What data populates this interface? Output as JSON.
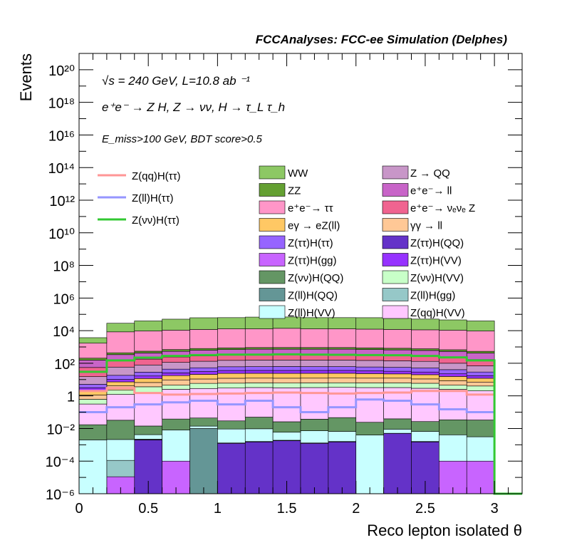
{
  "header": {
    "title": "FCCAnalyses: FCC-ee Simulation (Delphes)"
  },
  "annotations": {
    "line1": "√s = 240 GeV, L=10.8 ab ⁻¹",
    "line2": "e⁺e⁻ → Z H, Z → νν, H → τ_L τ_h",
    "line3": "E_miss>100 GeV, BDT score>0.5"
  },
  "colors": {
    "WW": "#8dc864",
    "ZZ": "#64a032",
    "ee_tautau": "#ff96c8",
    "ee_ll": "#c864c8",
    "ee_nunuZ": "#f06490",
    "egamma_eZ": "#ffc864",
    "gammagamma_ll": "#ffc896",
    "Z_QQ": "#c896c8",
    "ZtautauHtautau": "#9664ff",
    "ZtautauHQQ": "#6432c8",
    "ZtautauHgg": "#c864ff",
    "ZtautauHVV": "#9632ff",
    "ZnunuHQQ": "#649664",
    "ZnunuHVV": "#c8ffc8",
    "ZllHQQ": "#649696",
    "ZllHgg": "#96c8c8",
    "ZllHVV": "#c8ffff",
    "ZqqHVV": "#ffc8ff",
    "sig_qq": "#ff9696",
    "sig_ll": "#9696ff",
    "sig_nunu": "#32c832"
  },
  "chart_data": {
    "type": "histogram",
    "title": "FCCAnalyses: FCC-ee Simulation (Delphes)",
    "xlabel": "Reco lepton isolated θ",
    "ylabel": "Events",
    "xlim": [
      0,
      3.2
    ],
    "ylim": [
      1e-06,
      1e+21
    ],
    "yscale": "log",
    "x_ticks": [
      "0",
      "0.5",
      "1",
      "1.5",
      "2",
      "2.5",
      "3"
    ],
    "y_ticks": [
      "10⁻⁶",
      "10⁻⁴",
      "10⁻²",
      "1",
      "10²",
      "10⁴",
      "10⁶",
      "10⁸",
      "10¹⁰",
      "10¹²",
      "10¹⁴",
      "10¹⁶",
      "10¹⁸",
      "10²⁰"
    ],
    "bin_edges": [
      0,
      0.2,
      0.4,
      0.6,
      0.8,
      1.0,
      1.2,
      1.4,
      1.6,
      1.8,
      2.0,
      2.2,
      2.4,
      2.6,
      2.8,
      3.0
    ],
    "stack": [
      {
        "name": "Z(ll)H(QQ)",
        "key": "ZllHQQ",
        "values": [
          0,
          0,
          0,
          0,
          0.01,
          0,
          0,
          0,
          0,
          0,
          0,
          0,
          0,
          0,
          0
        ]
      },
      {
        "name": "Z(ττ)H(QQ)",
        "key": "ZtautauHQQ",
        "values": [
          0,
          1e-06,
          0.002,
          0,
          0,
          0.0012,
          0.0015,
          0.0018,
          0.0012,
          0.0015,
          0,
          0.005,
          0.0015,
          0,
          0
        ]
      },
      {
        "name": "Z(ττ)H(gg)",
        "key": "ZtautauHgg",
        "values": [
          0,
          1e-05,
          0.0001,
          0.0001,
          0,
          0.0001,
          0.0001,
          0.0001,
          0.0001,
          0.0001,
          0,
          0.0001,
          0.0001,
          0.0001,
          0.0001
        ]
      },
      {
        "name": "Z(ll)H(gg)",
        "key": "ZllHgg",
        "values": [
          0,
          0.0001,
          0.0001,
          0,
          0,
          0,
          0,
          0,
          0,
          0,
          0,
          0,
          0,
          0,
          0
        ]
      },
      {
        "name": "Z(ll)H(VV)",
        "key": "ZllHVV",
        "values": [
          0.002,
          0.002,
          0.002,
          0.008,
          0.004,
          0.008,
          0.008,
          0.004,
          0.006,
          0.005,
          0.004,
          0.004,
          0.005,
          0.004,
          0.003
        ]
      },
      {
        "name": "Z(νν)H(QQ)",
        "key": "ZnunuHQQ",
        "values": [
          0.015,
          0.03,
          0.01,
          0.03,
          0.03,
          0.02,
          0.04,
          0.02,
          0.03,
          0.04,
          0.02,
          0.03,
          0.02,
          0.03,
          0.03
        ]
      },
      {
        "name": "Z(qq)H(VV)",
        "key": "ZqqHVV",
        "values": [
          0.3,
          1.2,
          1.6,
          2.5,
          2.8,
          3.0,
          3.2,
          3.1,
          3.2,
          3.3,
          3.2,
          3.2,
          2.9,
          2.5,
          2.0
        ]
      },
      {
        "name": "Z(νν)H(VV)",
        "key": "ZnunuHVV",
        "values": [
          0.3,
          1,
          2,
          2,
          3,
          3,
          3,
          3,
          3,
          3,
          3,
          3,
          3,
          2,
          2
        ]
      },
      {
        "name": "γγ → ll",
        "key": "gammagamma_ll",
        "values": [
          0.5,
          2,
          3,
          5,
          5,
          6,
          6,
          6,
          6,
          6,
          6,
          6,
          5,
          4,
          3
        ]
      },
      {
        "name": "eγ → eZ(ll)",
        "key": "egamma_eZ",
        "values": [
          1,
          3,
          5,
          8,
          10,
          12,
          12,
          12,
          12,
          12,
          11,
          10,
          9,
          7,
          5
        ]
      },
      {
        "name": "Z(ττ)H(VV)",
        "key": "ZtautauHVV",
        "values": [
          1,
          3,
          5,
          8,
          10,
          12,
          12,
          12,
          12,
          12,
          11,
          10,
          9,
          7,
          5
        ]
      },
      {
        "name": "Z(ττ)H(ττ)",
        "key": "ZtautauHtautau",
        "values": [
          2,
          8,
          12,
          18,
          22,
          25,
          26,
          27,
          26,
          26,
          25,
          24,
          22,
          18,
          12
        ]
      },
      {
        "name": "Z → QQ",
        "key": "Z_QQ",
        "values": [
          10,
          40,
          50,
          70,
          80,
          90,
          95,
          95,
          95,
          95,
          90,
          85,
          80,
          60,
          40
        ]
      },
      {
        "name": "e⁺e⁻→ νₑνₑ Z",
        "key": "ee_nunuZ",
        "values": [
          40,
          80,
          100,
          130,
          150,
          160,
          170,
          175,
          170,
          170,
          165,
          160,
          150,
          130,
          100
        ]
      },
      {
        "name": "e⁺e⁻→ ll",
        "key": "ee_ll",
        "values": [
          100,
          200,
          250,
          300,
          350,
          380,
          400,
          400,
          400,
          400,
          380,
          360,
          330,
          300,
          250
        ]
      },
      {
        "name": "ZZ",
        "key": "ZZ",
        "values": [
          50,
          100,
          120,
          150,
          170,
          180,
          190,
          190,
          190,
          190,
          180,
          170,
          160,
          140,
          120
        ]
      },
      {
        "name": "e⁺e⁻→ ττ",
        "key": "ee_tautau",
        "values": [
          1500,
          8000,
          9000,
          10000,
          11000,
          12000,
          12000,
          13000,
          12000,
          12000,
          11500,
          11000,
          10500,
          10000,
          9000
        ]
      },
      {
        "name": "WW",
        "key": "WW",
        "values": [
          2000,
          20000,
          30000,
          40000,
          50000,
          50000,
          55000,
          55000,
          50000,
          50000,
          50000,
          45000,
          40000,
          35000,
          30000
        ]
      }
    ],
    "signal_lines": [
      {
        "name": "Z(qq)H(ττ)",
        "key": "sig_qq",
        "values": [
          2,
          3,
          1.5,
          1.2,
          1.3,
          1.4,
          1.5,
          1.6,
          1.5,
          1.4,
          1.5,
          1.6,
          2,
          2,
          1.2
        ]
      },
      {
        "name": "Z(ll)H(ττ)",
        "key": "sig_ll",
        "values": [
          0.1,
          0.2,
          0.3,
          0.4,
          0.5,
          0.3,
          0.5,
          0.2,
          0.1,
          0.2,
          0.6,
          0.5,
          0.3,
          0.15,
          0.1
        ]
      },
      {
        "name": "Z(νν)H(ττ)",
        "key": "sig_nunu",
        "values": [
          30,
          150,
          220,
          280,
          320,
          340,
          340,
          350,
          340,
          330,
          320,
          310,
          280,
          230,
          150
        ]
      }
    ],
    "legend": {
      "left": [
        "Z(qq)H(ττ)",
        "Z(ll)H(ττ)",
        "Z(νν)H(ττ)"
      ],
      "col1": [
        "WW",
        "ZZ",
        "e⁺e⁻→ ττ",
        "eγ → eZ(ll)",
        "Z(ττ)H(ττ)",
        "Z(ττ)H(gg)",
        "Z(νν)H(QQ)",
        "Z(ll)H(QQ)",
        "Z(ll)H(VV)"
      ],
      "col2": [
        "Z → QQ",
        "e⁺e⁻→ ll",
        "e⁺e⁻→ νₑνₑ Z",
        "γγ → ll",
        "Z(ττ)H(QQ)",
        "Z(ττ)H(VV)",
        "Z(νν)H(VV)",
        "Z(ll)H(gg)",
        "Z(qq)H(VV)"
      ],
      "col1_keys": [
        "WW",
        "ZZ",
        "ee_tautau",
        "egamma_eZ",
        "ZtautauHtautau",
        "ZtautauHgg",
        "ZnunuHQQ",
        "ZllHQQ",
        "ZllHVV"
      ],
      "col2_keys": [
        "Z_QQ",
        "ee_ll",
        "ee_nunuZ",
        "gammagamma_ll",
        "ZtautauHQQ",
        "ZtautauHVV",
        "ZnunuHVV",
        "ZllHgg",
        "ZqqHVV"
      ],
      "left_keys": [
        "sig_qq",
        "sig_ll",
        "sig_nunu"
      ]
    }
  }
}
